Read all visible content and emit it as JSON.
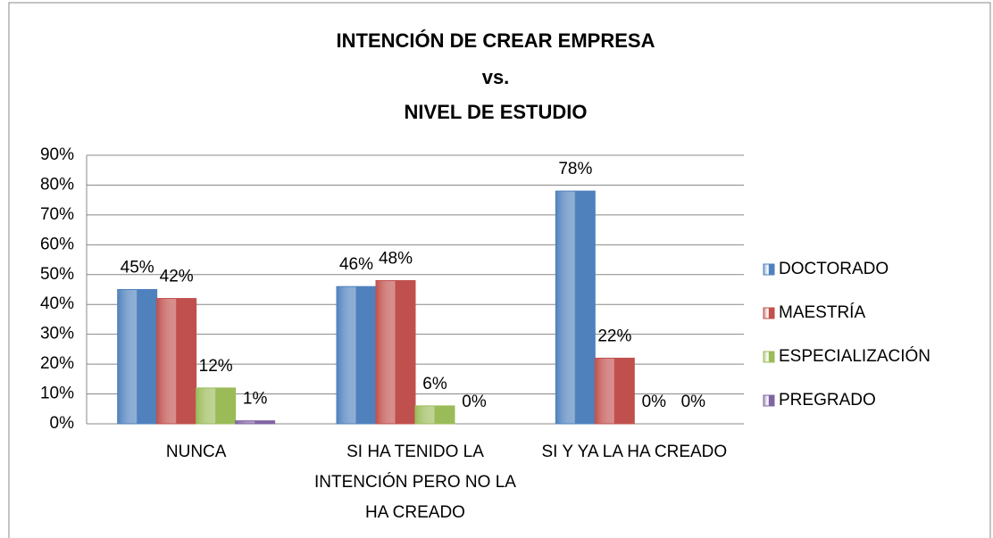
{
  "chart_data": {
    "type": "bar",
    "title": [
      "INTENCIÓN DE CREAR EMPRESA",
      "vs.",
      "NIVEL DE ESTUDIO"
    ],
    "categories": [
      "NUNCA",
      "SI HA TENIDO LA INTENCIÓN PERO NO LA HA CREADO",
      "SI Y YA LA HA CREADO"
    ],
    "series": [
      {
        "name": "DOCTORADO",
        "color": "#4f81bd",
        "values": [
          45,
          46,
          78
        ],
        "value_labels": [
          "45%",
          "46%",
          "78%"
        ]
      },
      {
        "name": "MAESTRÍA",
        "color": "#c0504d",
        "values": [
          42,
          48,
          22
        ],
        "value_labels": [
          "42%",
          "48%",
          "22%"
        ]
      },
      {
        "name": "ESPECIALIZACIÓN",
        "color": "#9bbb59",
        "values": [
          12,
          6,
          0
        ],
        "value_labels": [
          "12%",
          "6%",
          "0%"
        ]
      },
      {
        "name": "PREGRADO",
        "color": "#8064a2",
        "values": [
          1,
          0,
          0
        ],
        "value_labels": [
          "1%",
          "0%",
          "0%"
        ]
      }
    ],
    "ylim": [
      0,
      90
    ],
    "yticks": [
      {
        "value": 0,
        "label": "0%"
      },
      {
        "value": 10,
        "label": "10%"
      },
      {
        "value": 20,
        "label": "20%"
      },
      {
        "value": 30,
        "label": "30%"
      },
      {
        "value": 40,
        "label": "40%"
      },
      {
        "value": 50,
        "label": "50%"
      },
      {
        "value": 60,
        "label": "60%"
      },
      {
        "value": 70,
        "label": "70%"
      },
      {
        "value": 80,
        "label": "80%"
      },
      {
        "value": 90,
        "label": "90%"
      }
    ],
    "grid": true,
    "legend": "right"
  }
}
